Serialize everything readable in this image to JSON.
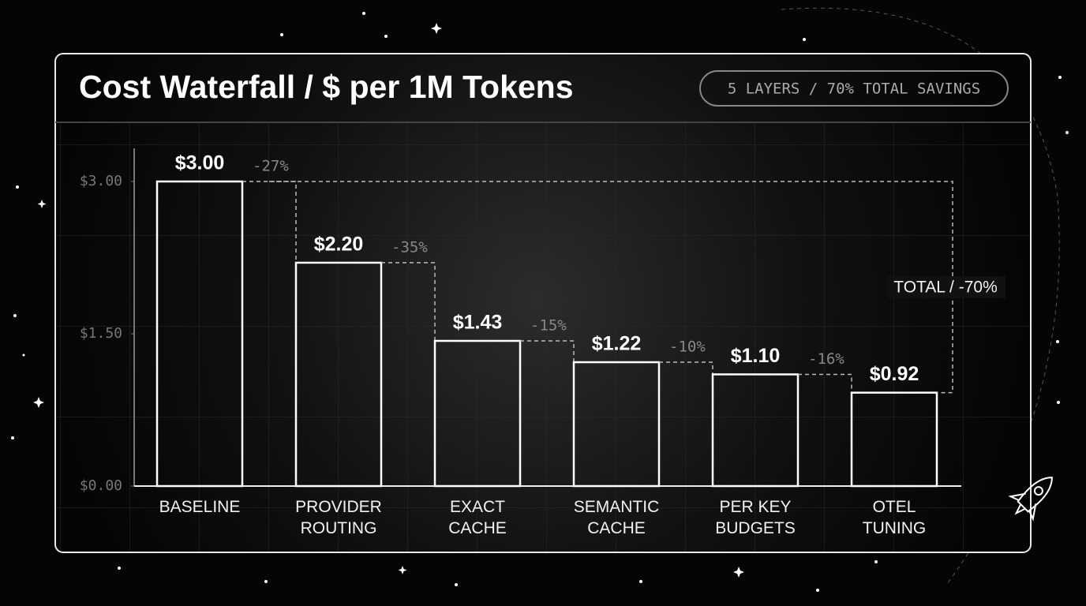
{
  "chart_data": {
    "type": "bar",
    "title": "Cost Waterfall / $ per 1M Tokens",
    "badge": "5 LAYERS / 70% TOTAL SAVINGS",
    "categories": [
      "BASELINE",
      "PROVIDER ROUTING",
      "EXACT CACHE",
      "SEMANTIC CACHE",
      "PER KEY BUDGETS",
      "OTEL TUNING"
    ],
    "values": [
      3.0,
      2.2,
      1.43,
      1.22,
      1.1,
      0.92
    ],
    "value_labels": [
      "$3.00",
      "$2.20",
      "$1.43",
      "$1.22",
      "$1.10",
      "$0.92"
    ],
    "step_labels": [
      "-27%",
      "-35%",
      "-15%",
      "-10%",
      "-16%"
    ],
    "total_label": "TOTAL / -70%",
    "color": "#ffffff",
    "ylim": [
      0,
      3.3
    ],
    "yticks": [
      {
        "value": 0,
        "label": "$0.00"
      },
      {
        "value": 1.5,
        "label": "$1.50"
      },
      {
        "value": 3,
        "label": "$3.00"
      }
    ]
  }
}
